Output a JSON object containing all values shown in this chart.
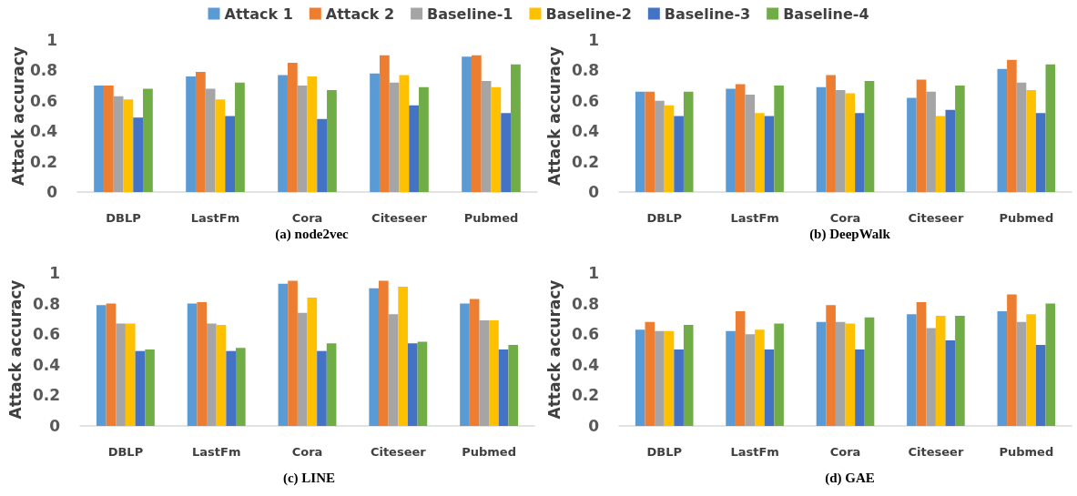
{
  "chart_data": [
    {
      "type": "bar",
      "title": "(a) node2vec",
      "ylabel": "Attack accuracy",
      "categories": [
        "DBLP",
        "LastFm",
        "Cora",
        "Citeseer",
        "Pubmed"
      ],
      "ylim": [
        0,
        1
      ],
      "yticks": [
        0,
        0.2,
        0.4,
        0.6,
        0.8,
        1
      ],
      "grid": false,
      "legend": "top",
      "series": [
        {
          "name": "Attack 1",
          "color": "#5b9bd5",
          "values": [
            0.7,
            0.76,
            0.77,
            0.78,
            0.89
          ]
        },
        {
          "name": "Attack 2",
          "color": "#ed7d31",
          "values": [
            0.7,
            0.79,
            0.85,
            0.9,
            0.9
          ]
        },
        {
          "name": "Baseline-1",
          "color": "#a5a5a5",
          "values": [
            0.63,
            0.68,
            0.7,
            0.72,
            0.73
          ]
        },
        {
          "name": "Baseline-2",
          "color": "#ffc000",
          "values": [
            0.61,
            0.61,
            0.76,
            0.77,
            0.69
          ]
        },
        {
          "name": "Baseline-3",
          "color": "#4472c4",
          "values": [
            0.49,
            0.5,
            0.48,
            0.57,
            0.52
          ]
        },
        {
          "name": "Baseline-4",
          "color": "#70ad47",
          "values": [
            0.68,
            0.72,
            0.67,
            0.69,
            0.84
          ]
        }
      ]
    },
    {
      "type": "bar",
      "title": "(b) DeepWalk",
      "ylabel": "Attack accuracy",
      "categories": [
        "DBLP",
        "LastFm",
        "Cora",
        "Citeseer",
        "Pubmed"
      ],
      "ylim": [
        0,
        1
      ],
      "yticks": [
        0,
        0.2,
        0.4,
        0.6,
        0.8,
        1
      ],
      "grid": false,
      "legend": false,
      "series": [
        {
          "color": "#5b9bd5",
          "values": [
            0.66,
            0.68,
            0.69,
            0.62,
            0.81
          ]
        },
        {
          "color": "#ed7d31",
          "values": [
            0.66,
            0.71,
            0.77,
            0.74,
            0.87
          ]
        },
        {
          "color": "#a5a5a5",
          "values": [
            0.6,
            0.64,
            0.67,
            0.66,
            0.72
          ]
        },
        {
          "color": "#ffc000",
          "values": [
            0.57,
            0.52,
            0.65,
            0.5,
            0.67
          ]
        },
        {
          "color": "#4472c4",
          "values": [
            0.5,
            0.5,
            0.52,
            0.54,
            0.52
          ]
        },
        {
          "color": "#70ad47",
          "values": [
            0.66,
            0.7,
            0.73,
            0.7,
            0.84
          ]
        }
      ]
    },
    {
      "type": "bar",
      "title": "(c) LINE",
      "ylabel": "Attack accuracy",
      "categories": [
        "DBLP",
        "LastFm",
        "Cora",
        "Citeseer",
        "Pubmed"
      ],
      "ylim": [
        0,
        1
      ],
      "yticks": [
        0,
        0.2,
        0.4,
        0.6,
        0.8,
        1
      ],
      "grid": false,
      "legend": false,
      "series": [
        {
          "color": "#5b9bd5",
          "values": [
            0.79,
            0.8,
            0.93,
            0.9,
            0.8
          ]
        },
        {
          "color": "#ed7d31",
          "values": [
            0.8,
            0.81,
            0.95,
            0.95,
            0.83
          ]
        },
        {
          "color": "#a5a5a5",
          "values": [
            0.67,
            0.67,
            0.74,
            0.73,
            0.69
          ]
        },
        {
          "color": "#ffc000",
          "values": [
            0.67,
            0.66,
            0.84,
            0.91,
            0.69
          ]
        },
        {
          "color": "#4472c4",
          "values": [
            0.49,
            0.49,
            0.49,
            0.54,
            0.5
          ]
        },
        {
          "color": "#70ad47",
          "values": [
            0.5,
            0.51,
            0.54,
            0.55,
            0.53
          ]
        }
      ]
    },
    {
      "type": "bar",
      "title": "(d) GAE",
      "ylabel": "Attack accuracy",
      "categories": [
        "DBLP",
        "LastFm",
        "Cora",
        "Citeseer",
        "Pubmed"
      ],
      "ylim": [
        0,
        1
      ],
      "yticks": [
        0,
        0.2,
        0.4,
        0.6,
        0.8,
        1
      ],
      "grid": false,
      "legend": false,
      "series": [
        {
          "color": "#5b9bd5",
          "values": [
            0.63,
            0.62,
            0.68,
            0.73,
            0.75
          ]
        },
        {
          "color": "#ed7d31",
          "values": [
            0.68,
            0.75,
            0.79,
            0.81,
            0.86
          ]
        },
        {
          "color": "#a5a5a5",
          "values": [
            0.62,
            0.6,
            0.68,
            0.64,
            0.68
          ]
        },
        {
          "color": "#ffc000",
          "values": [
            0.62,
            0.63,
            0.67,
            0.72,
            0.73
          ]
        },
        {
          "color": "#4472c4",
          "values": [
            0.5,
            0.5,
            0.5,
            0.56,
            0.53
          ]
        },
        {
          "color": "#70ad47",
          "values": [
            0.66,
            0.67,
            0.71,
            0.72,
            0.8
          ]
        }
      ]
    }
  ]
}
